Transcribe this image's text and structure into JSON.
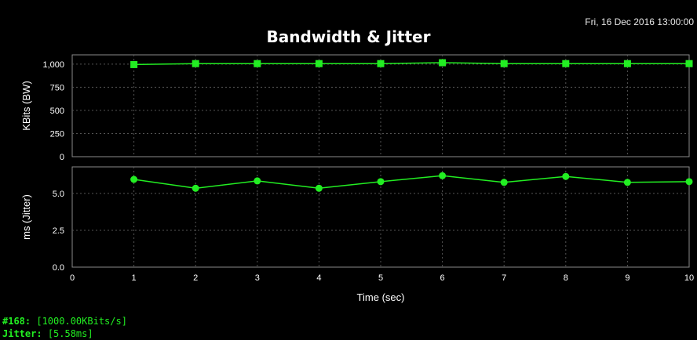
{
  "header": {
    "timestamp": "Fri, 16 Dec 2016 13:00:00",
    "title": "Bandwidth & Jitter"
  },
  "status": {
    "sample_label": "#168:",
    "sample_value": "[1000.00KBits/s]",
    "jitter_label": "Jitter:",
    "jitter_value": "[5.58ms]"
  },
  "colors": {
    "background": "#000000",
    "series": "#22ee22",
    "plot_border": "#8a8a8a",
    "grid": "#555555",
    "text": "#ffffff"
  },
  "chart_data": [
    {
      "type": "line",
      "x": [
        1,
        2,
        3,
        4,
        5,
        6,
        7,
        8,
        9,
        10
      ],
      "series": [
        {
          "values": [
            995,
            1005,
            1005,
            1005,
            1005,
            1015,
            1005,
            1005,
            1005,
            1005
          ],
          "marker": "square"
        }
      ],
      "ylabel": "KBits (BW)",
      "xlim": [
        0,
        10
      ],
      "ylim": [
        0,
        1100
      ],
      "yticks": [
        0,
        250,
        500,
        750,
        1000
      ],
      "yticklabels": [
        "0",
        "250",
        "500",
        "750",
        "1,000"
      ],
      "grid": true
    },
    {
      "type": "line",
      "x": [
        1,
        2,
        3,
        4,
        5,
        6,
        7,
        8,
        9,
        10
      ],
      "series": [
        {
          "values": [
            5.95,
            5.35,
            5.85,
            5.35,
            5.8,
            6.2,
            5.75,
            6.15,
            5.75,
            5.8
          ],
          "marker": "circle"
        }
      ],
      "ylabel": "ms (Jitter)",
      "xlabel": "Time (sec)",
      "xlim": [
        0,
        10
      ],
      "ylim": [
        0,
        6.8
      ],
      "yticks": [
        0,
        2.5,
        5.0
      ],
      "yticklabels": [
        "0.0",
        "2.5",
        "5.0"
      ],
      "xticks": [
        0,
        1,
        2,
        3,
        4,
        5,
        6,
        7,
        8,
        9,
        10
      ],
      "grid": true
    }
  ]
}
